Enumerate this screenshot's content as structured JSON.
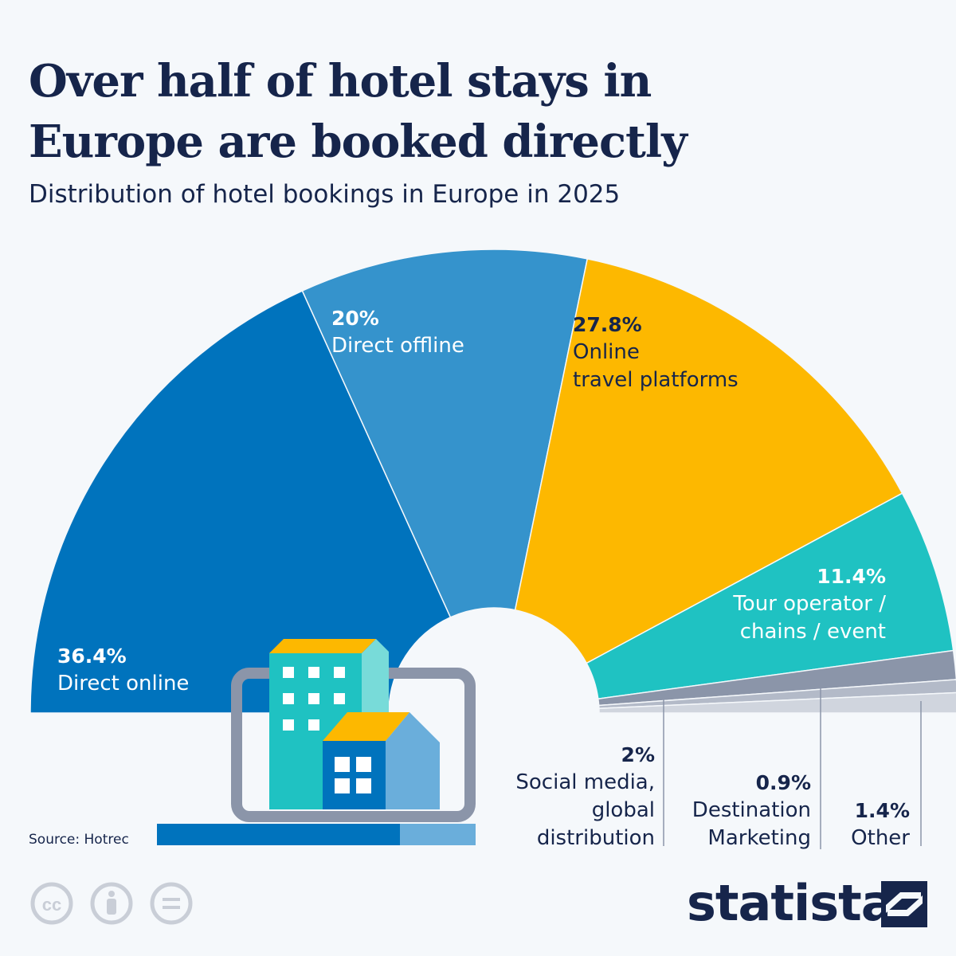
{
  "header": {
    "title_line1": "Over half of hotel stays in",
    "title_line2": "Europe are booked directly",
    "subtitle": "Distribution of hotel bookings in Europe in 2025"
  },
  "chart_data": {
    "type": "pie",
    "title": "Over half of hotel stays in Europe are booked directly",
    "subtitle": "Distribution of hotel bookings in Europe in 2025",
    "shape": "semicircle-donut",
    "unit": "%",
    "slices": [
      {
        "name": "Direct online",
        "value": 36.4,
        "label": "36.4%",
        "color": "#0073bd"
      },
      {
        "name": "Direct offline",
        "value": 20,
        "label": "20%",
        "color": "#3593cc"
      },
      {
        "name": "Online travel platforms",
        "value": 27.8,
        "label": "27.8%",
        "color": "#fdb800"
      },
      {
        "name": "Tour operator / chains / event",
        "value": 11.4,
        "label": "11.4%",
        "color": "#1fc2c2"
      },
      {
        "name": "Social media, global distribution",
        "value": 2,
        "label": "2%",
        "color": "#8b95a9"
      },
      {
        "name": "Destination Marketing",
        "value": 0.9,
        "label": "0.9%",
        "color": "#b3bac8"
      },
      {
        "name": "Other",
        "value": 1.4,
        "label": "1.4%",
        "color": "#d0d5de"
      }
    ]
  },
  "labels": {
    "direct_online": {
      "value": "36.4%",
      "name": "Direct online"
    },
    "direct_offline": {
      "value": "20%",
      "name": "Direct offline"
    },
    "otp": {
      "value": "27.8%",
      "name_line1": "Online",
      "name_line2": "travel platforms"
    },
    "tour": {
      "value": "11.4%",
      "name_line1": "Tour operator /",
      "name_line2": "chains / event"
    },
    "social": {
      "value": "2%",
      "name_line1": "Social media,",
      "name_line2": "global",
      "name_line3": "distribution"
    },
    "dmo": {
      "value": "0.9%",
      "name_line1": "Destination",
      "name_line2": "Marketing"
    },
    "other": {
      "value": "1.4%",
      "name": "Other"
    }
  },
  "footer": {
    "source": "Source: Hotrec",
    "brand": "statista"
  },
  "icons": [
    "hotel-laptop-illustration",
    "creative-commons-icon",
    "attribution-icon",
    "no-derivatives-icon",
    "statista-logo-icon"
  ]
}
